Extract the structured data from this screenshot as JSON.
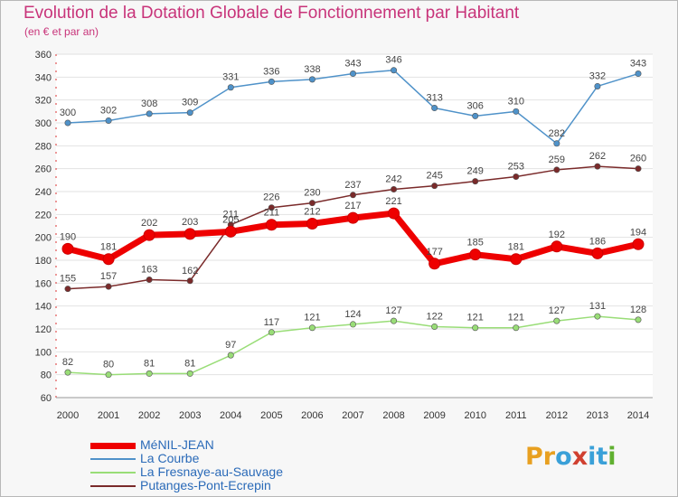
{
  "header": {
    "title": "Evolution de la Dotation Globale de Fonctionnement par Habitant",
    "subtitle": "(en € et par an)"
  },
  "logo": {
    "letters": [
      "P",
      "r",
      "o",
      "x",
      "i",
      "t",
      "i"
    ],
    "colors": [
      "#e8a020",
      "#e8a020",
      "#3aa0d8",
      "#d04030",
      "#3aa0d8",
      "#3aa0d8",
      "#60b030"
    ]
  },
  "chart_data": {
    "type": "line",
    "x": [
      "2000",
      "2001",
      "2002",
      "2003",
      "2004",
      "2005",
      "2006",
      "2007",
      "2008",
      "2009",
      "2010",
      "2011",
      "2012",
      "2013",
      "2014"
    ],
    "ylim": [
      60,
      360
    ],
    "yticks": [
      60,
      80,
      100,
      120,
      140,
      160,
      180,
      200,
      220,
      240,
      260,
      280,
      300,
      320,
      340,
      360
    ],
    "grid": "horizontal",
    "legend": "bottom-left",
    "series": [
      {
        "name": "MéNIL-JEAN",
        "color": "#ee0000",
        "values": [
          190,
          181,
          202,
          203,
          205,
          211,
          212,
          217,
          221,
          177,
          185,
          181,
          192,
          186,
          194
        ]
      },
      {
        "name": "La Courbe",
        "color": "#4f92c9",
        "values": [
          300,
          302,
          308,
          309,
          331,
          336,
          338,
          343,
          346,
          313,
          306,
          310,
          282,
          332,
          343
        ]
      },
      {
        "name": "La Fresnaye-au-Sauvage",
        "color": "#99dd77",
        "values": [
          82,
          80,
          81,
          81,
          97,
          117,
          121,
          124,
          127,
          122,
          121,
          121,
          127,
          131,
          128
        ]
      },
      {
        "name": "Putanges-Pont-Ecrepin",
        "color": "#7a2a2a",
        "values": [
          155,
          157,
          163,
          162,
          211,
          226,
          230,
          237,
          242,
          245,
          249,
          253,
          259,
          262,
          260
        ]
      }
    ]
  }
}
